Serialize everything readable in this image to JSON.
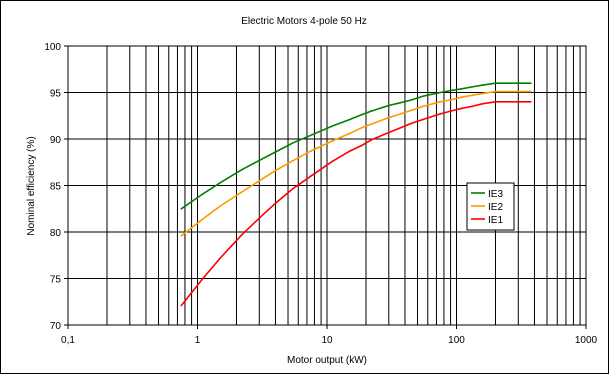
{
  "chart_data": {
    "type": "line",
    "title": "Electric Motors 4-pole 50 Hz",
    "xlabel": "Motor output (kW)",
    "ylabel": "Nominal efficiency (%)",
    "x_scale": "log",
    "xlim": [
      0.1,
      1000
    ],
    "ylim": [
      70,
      100
    ],
    "x_ticks": [
      0.1,
      1,
      10,
      100,
      1000
    ],
    "x_tick_labels": [
      "0,1",
      "1",
      "10",
      "100",
      "1000"
    ],
    "y_ticks": [
      70,
      75,
      80,
      85,
      90,
      95,
      100
    ],
    "y_tick_labels": [
      "70",
      "75",
      "80",
      "85",
      "90",
      "95",
      "100"
    ],
    "grid": true,
    "legend_position": "right",
    "series": [
      {
        "name": "IE3",
        "color": "#008000",
        "x": [
          0.75,
          1.1,
          1.5,
          2.2,
          3,
          4,
          5.5,
          7.5,
          11,
          15,
          18.5,
          22,
          30,
          37,
          45,
          55,
          75,
          90,
          110,
          132,
          160,
          200,
          375
        ],
        "y": [
          82.5,
          84.1,
          85.3,
          86.7,
          87.7,
          88.6,
          89.6,
          90.4,
          91.4,
          92.1,
          92.6,
          93.0,
          93.6,
          93.9,
          94.2,
          94.6,
          95.0,
          95.2,
          95.4,
          95.6,
          95.8,
          96.0,
          96.0
        ]
      },
      {
        "name": "IE2",
        "color": "#ff9900",
        "x": [
          0.75,
          1.1,
          1.5,
          2.2,
          3,
          4,
          5.5,
          7.5,
          11,
          15,
          18.5,
          22,
          30,
          37,
          45,
          55,
          75,
          90,
          110,
          132,
          160,
          200,
          375
        ],
        "y": [
          79.6,
          81.4,
          82.8,
          84.3,
          85.5,
          86.6,
          87.7,
          88.7,
          89.8,
          90.6,
          91.2,
          91.6,
          92.3,
          92.7,
          93.1,
          93.5,
          94.0,
          94.2,
          94.5,
          94.7,
          94.9,
          95.1,
          95.1
        ]
      },
      {
        "name": "IE1",
        "color": "#ff0000",
        "x": [
          0.75,
          1.1,
          1.5,
          2.2,
          3,
          4,
          5.5,
          7.5,
          11,
          15,
          18.5,
          22,
          30,
          37,
          45,
          55,
          75,
          90,
          110,
          132,
          160,
          200,
          375
        ],
        "y": [
          72.1,
          75.0,
          77.2,
          79.7,
          81.5,
          83.1,
          84.7,
          86.0,
          87.6,
          88.7,
          89.3,
          89.9,
          90.7,
          91.2,
          91.7,
          92.1,
          92.7,
          93.0,
          93.3,
          93.5,
          93.8,
          94.0,
          94.0
        ]
      }
    ]
  }
}
